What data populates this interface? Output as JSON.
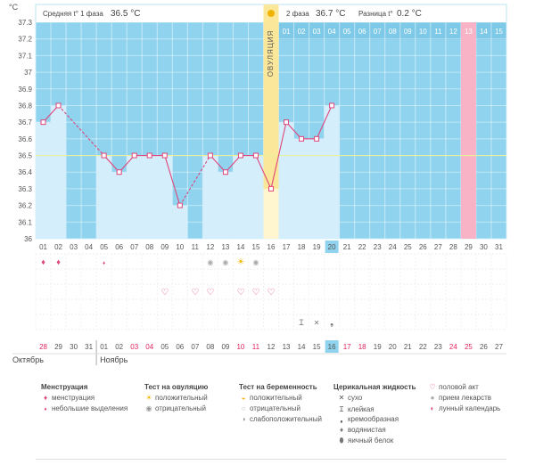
{
  "chart_data": {
    "type": "line",
    "unit_label": "°C",
    "y_ticks": [
      "37.3",
      "37.2",
      "37.1",
      "37",
      "36.9",
      "36.8",
      "36.7",
      "36.6",
      "36.5",
      "36.4",
      "36.3",
      "36.2",
      "36.1",
      "36"
    ],
    "ylim": [
      36,
      37.3
    ],
    "coverline": 36.5,
    "day_numbers": [
      "01",
      "02",
      "03",
      "04",
      "05",
      "06",
      "07",
      "08",
      "09",
      "10",
      "11",
      "12",
      "13",
      "14",
      "15",
      "16",
      "17",
      "18",
      "19",
      "20",
      "21",
      "22",
      "23",
      "24",
      "25",
      "26",
      "27",
      "28",
      "29",
      "30",
      "31"
    ],
    "current_day": "20",
    "temperatures": [
      36.7,
      36.8,
      null,
      null,
      36.5,
      36.4,
      36.5,
      36.5,
      36.5,
      36.2,
      null,
      36.5,
      36.4,
      36.5,
      36.5,
      36.3,
      36.7,
      36.6,
      36.6,
      36.8,
      null,
      null,
      null,
      null,
      null,
      null,
      null,
      null,
      null,
      null,
      null
    ],
    "phase1_label": "Средняя t° 1 фаза",
    "phase1_value": "36.5 °C",
    "phase2_label": "2 фаза",
    "phase2_value": "36.7 °C",
    "diff_label": "Разница t°",
    "diff_value": "0.2 °C",
    "ovulation_label": "ОВУЛЯЦИЯ",
    "ovulation_day": "16",
    "phase2_day_numbers": [
      "01",
      "02",
      "03",
      "04",
      "05",
      "06",
      "07",
      "08",
      "09",
      "10",
      "11",
      "12",
      "13",
      "14",
      "15"
    ],
    "highlight_period_day": "13",
    "dates": [
      "28",
      "29",
      "30",
      "31",
      "01",
      "02",
      "03",
      "04",
      "05",
      "06",
      "07",
      "08",
      "09",
      "10",
      "11",
      "12",
      "13",
      "14",
      "15",
      "16",
      "17",
      "18",
      "19",
      "20",
      "21",
      "22",
      "23",
      "24",
      "25",
      "26",
      "27"
    ],
    "red_dates": [
      "28",
      "03",
      "04",
      "10",
      "11",
      "17",
      "18",
      "24",
      "25"
    ],
    "current_date": "16",
    "month1": "Октябрь",
    "month2": "Ноябрь"
  },
  "legend": {
    "menstruation": {
      "title": "Менструация",
      "items": [
        "менструация",
        "небольшие выделения"
      ]
    },
    "ovulation_test": {
      "title": "Тест на овуляцию",
      "items": [
        "положительный",
        "отрицательный"
      ]
    },
    "pregnancy_test": {
      "title": "Тест на беременность",
      "items": [
        "положительный",
        "отрицательный",
        "слабоположительный"
      ]
    },
    "cervical": {
      "title": "Церикальная жидкость",
      "items": [
        "сухо",
        "клейкая",
        "кремообразная",
        "водянистая",
        "яичный белок"
      ]
    },
    "other": {
      "items": [
        "половой акт",
        "прием лекарств",
        "лунный календарь"
      ]
    }
  }
}
